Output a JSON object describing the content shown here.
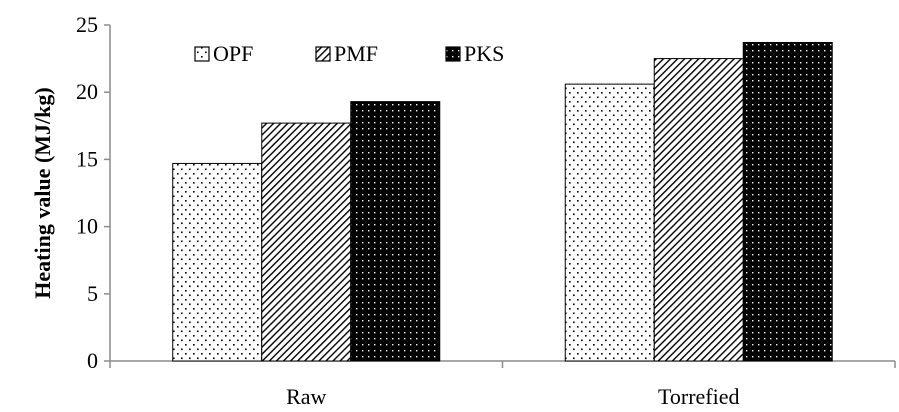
{
  "chart_data": {
    "type": "bar",
    "ylabel": "Heating value (MJ/kg)",
    "xlabel": "",
    "ylim": [
      0,
      25
    ],
    "yticks": [
      0,
      5,
      10,
      15,
      20,
      25
    ],
    "categories": [
      "Raw",
      "Torrefied"
    ],
    "series": [
      {
        "name": "OPF",
        "values": [
          14.7,
          20.6
        ],
        "pattern": "dots"
      },
      {
        "name": "PMF",
        "values": [
          17.7,
          22.5
        ],
        "pattern": "diagonal-hatch"
      },
      {
        "name": "PKS",
        "values": [
          19.3,
          23.7
        ],
        "pattern": "dense-dark"
      }
    ],
    "legend_position": "top-left",
    "grid": false,
    "colors": {
      "fill": "#ffffff",
      "ink": "#000000"
    }
  }
}
